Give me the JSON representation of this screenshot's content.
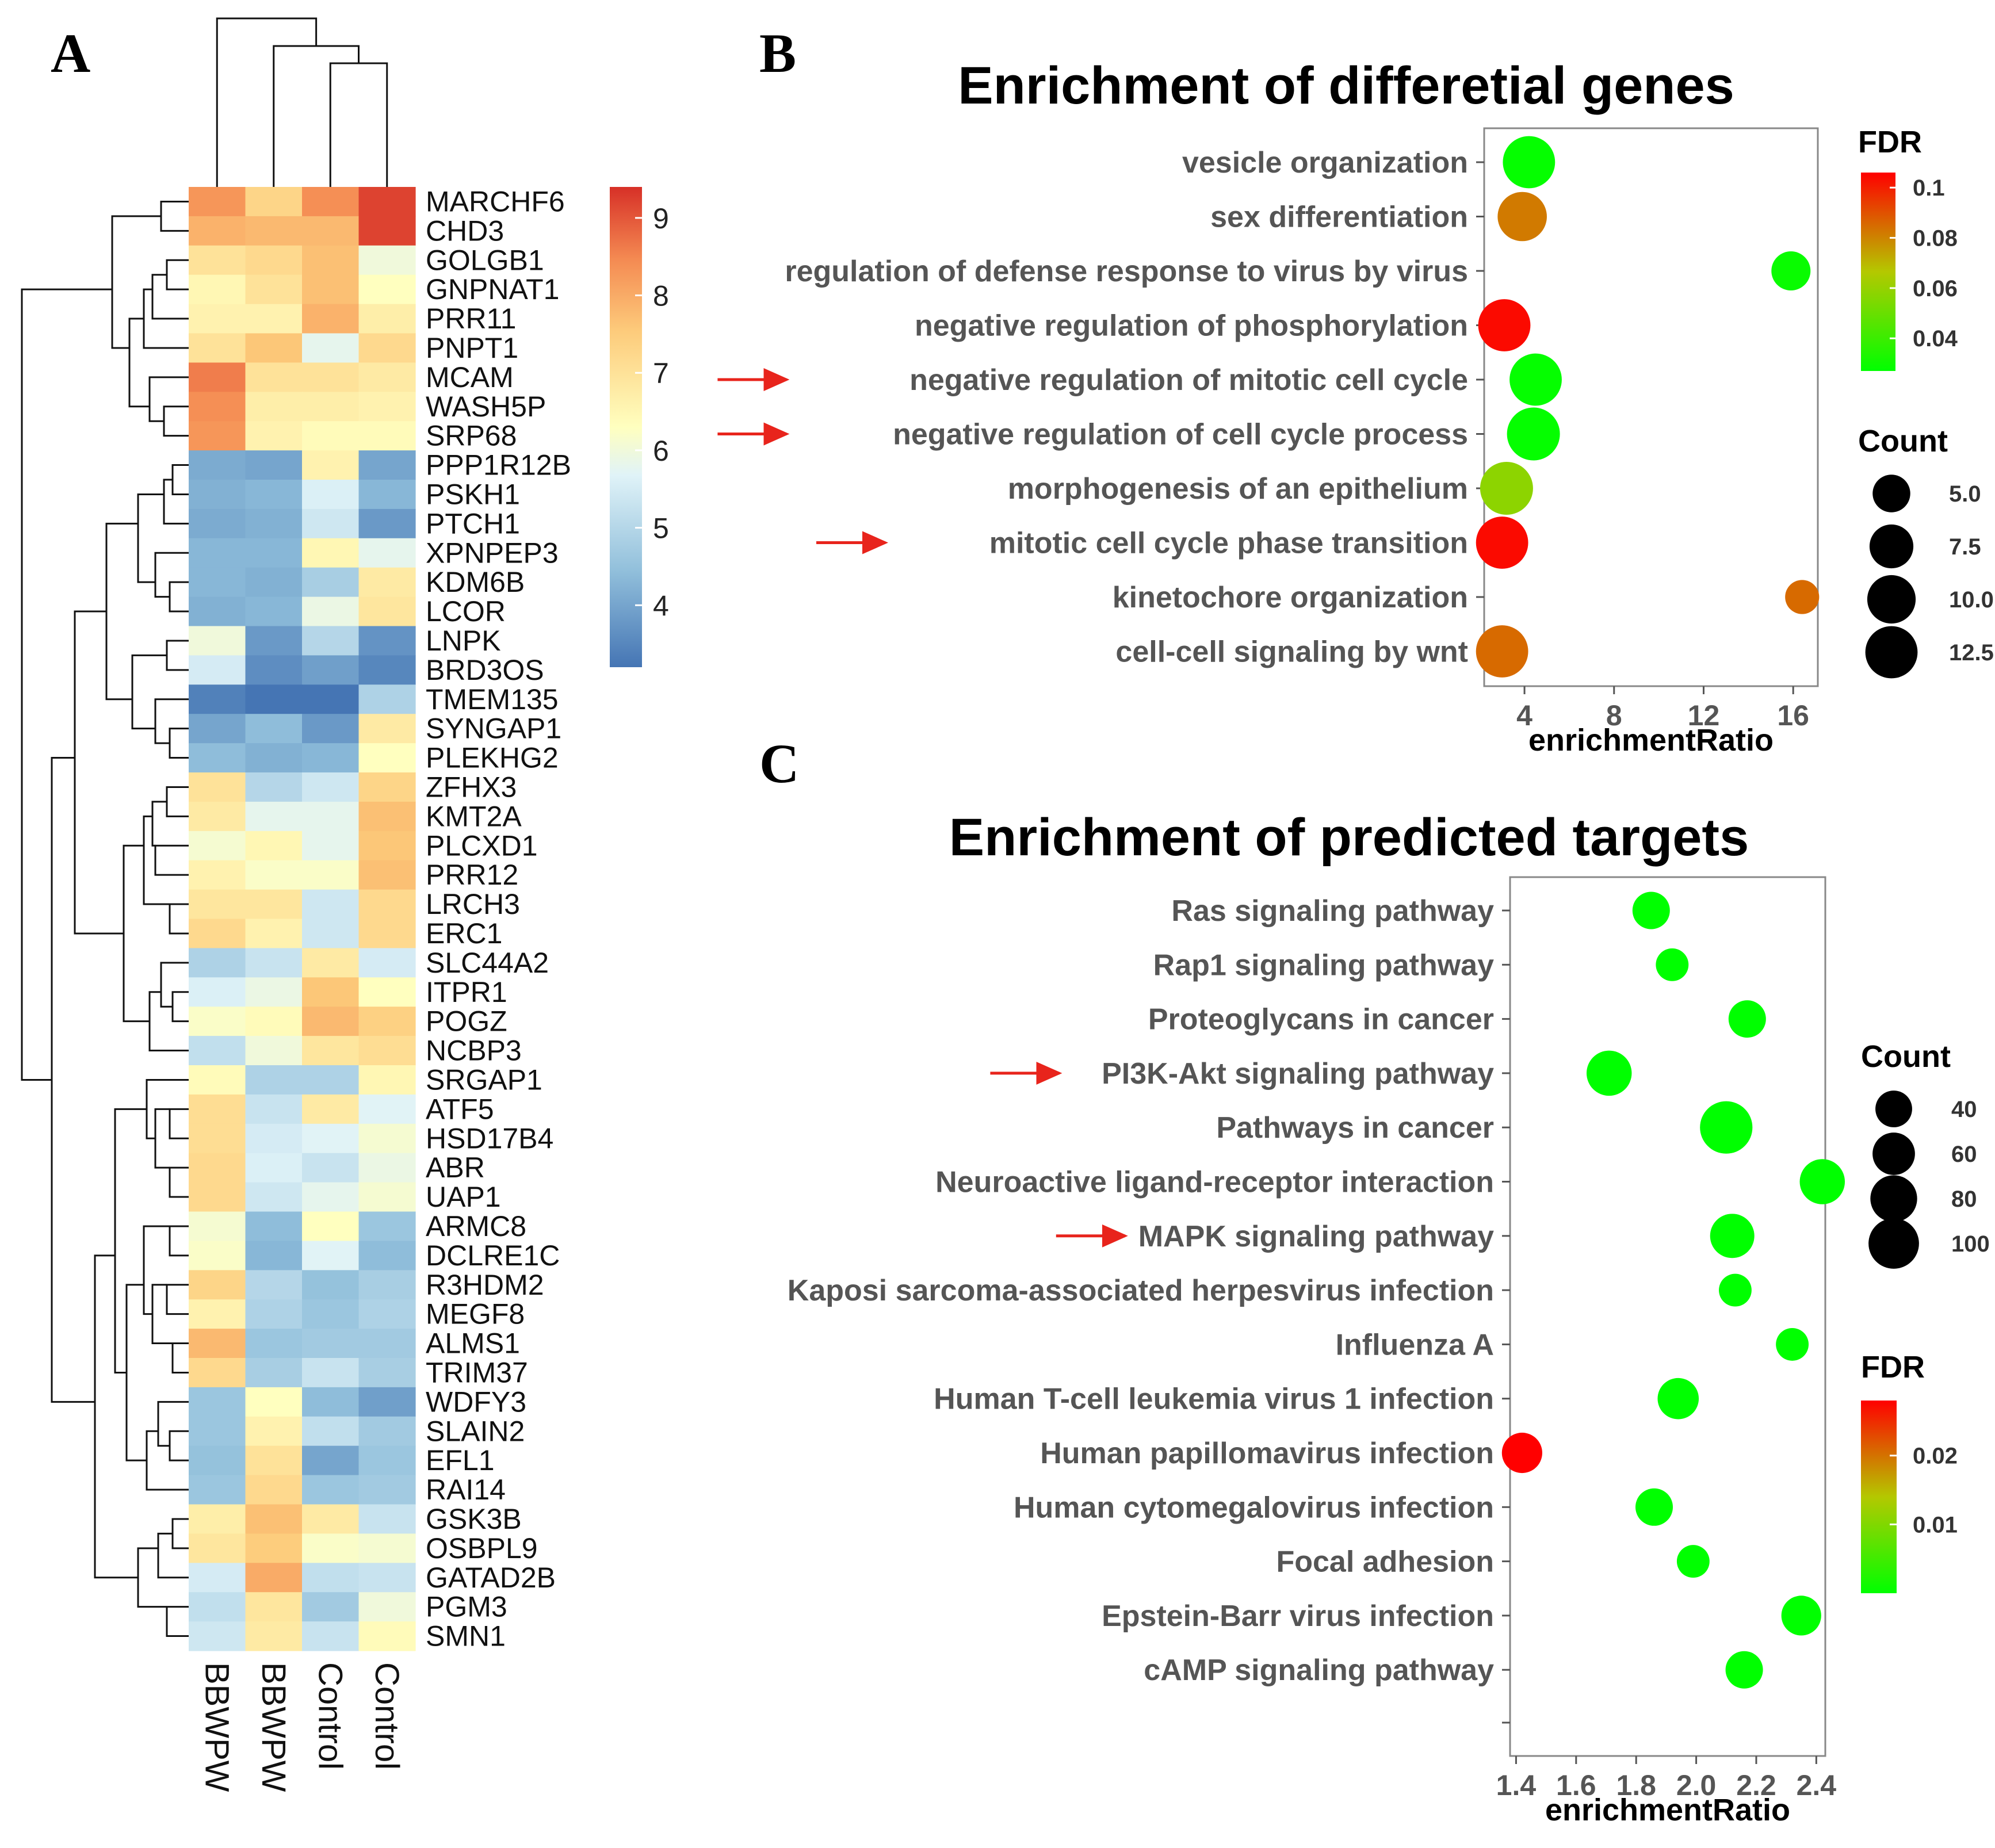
{
  "panels": {
    "A": "A",
    "B": "B",
    "C": "C"
  },
  "chart_data": [
    {
      "id": "heatmap",
      "type": "heatmap",
      "title": "",
      "samples": [
        "BBWPW",
        "BBWPW",
        "Control",
        "Control"
      ],
      "genes": [
        "MARCHF6",
        "CHD3",
        "GOLGB1",
        "GNPNAT1",
        "PRR11",
        "PNPT1",
        "MCAM",
        "WASH5P",
        "SRP68",
        "PPP1R12B",
        "PSKH1",
        "PTCH1",
        "XPNPEP3",
        "KDM6B",
        "LCOR",
        "LNPK",
        "BRD3OS",
        "TMEM135",
        "SYNGAP1",
        "PLEKHG2",
        "ZFHX3",
        "KMT2A",
        "PLCXD1",
        "PRR12",
        "LRCH3",
        "ERC1",
        "SLC44A2",
        "ITPR1",
        "POGZ",
        "NCBP3",
        "SRGAP1",
        "ATF5",
        "HSD17B4",
        "ABR",
        "UAP1",
        "ARMC8",
        "DCLRE1C",
        "R3HDM2",
        "MEGF8",
        "ALMS1",
        "TRIM37",
        "WDFY3",
        "SLAIN2",
        "EFL1",
        "RAI14",
        "GSK3B",
        "OSBPL9",
        "GATAD2B",
        "PGM3",
        "SMN1"
      ],
      "values": [
        [
          8.3,
          7.3,
          8.4,
          9.2
        ],
        [
          7.9,
          7.8,
          7.8,
          9.2
        ],
        [
          7.0,
          7.2,
          7.7,
          6.0
        ],
        [
          6.5,
          7.0,
          7.7,
          6.3
        ],
        [
          6.6,
          6.6,
          7.9,
          6.7
        ],
        [
          7.0,
          7.6,
          5.8,
          7.2
        ],
        [
          8.6,
          7.0,
          7.0,
          6.8
        ],
        [
          8.4,
          6.7,
          6.7,
          6.6
        ],
        [
          8.3,
          6.6,
          6.4,
          6.4
        ],
        [
          4.1,
          4.0,
          6.6,
          4.0
        ],
        [
          4.2,
          4.3,
          5.6,
          4.3
        ],
        [
          4.1,
          4.2,
          5.4,
          3.8
        ],
        [
          4.3,
          4.3,
          6.5,
          5.8
        ],
        [
          4.3,
          4.2,
          4.8,
          6.8
        ],
        [
          4.2,
          4.3,
          5.9,
          6.9
        ],
        [
          6.0,
          3.8,
          5.0,
          3.7
        ],
        [
          5.5,
          3.6,
          3.9,
          3.5
        ],
        [
          3.4,
          3.2,
          3.1,
          4.9
        ],
        [
          4.0,
          4.4,
          3.8,
          6.8
        ],
        [
          4.4,
          4.2,
          4.3,
          6.3
        ],
        [
          7.0,
          5.0,
          5.4,
          7.3
        ],
        [
          6.8,
          5.8,
          5.8,
          7.7
        ],
        [
          6.1,
          6.5,
          5.8,
          7.6
        ],
        [
          6.6,
          6.2,
          6.2,
          7.7
        ],
        [
          6.9,
          6.9,
          5.4,
          7.2
        ],
        [
          7.2,
          6.6,
          5.4,
          7.2
        ],
        [
          4.9,
          5.3,
          6.8,
          5.5
        ],
        [
          5.6,
          5.9,
          7.6,
          6.3
        ],
        [
          6.2,
          6.4,
          7.8,
          7.4
        ],
        [
          5.2,
          6.0,
          6.9,
          7.1
        ],
        [
          6.4,
          4.9,
          4.9,
          6.5
        ],
        [
          7.1,
          5.3,
          6.8,
          5.7
        ],
        [
          7.1,
          5.5,
          5.7,
          6.1
        ],
        [
          7.2,
          5.6,
          5.3,
          5.9
        ],
        [
          7.2,
          5.4,
          5.8,
          6.1
        ],
        [
          6.1,
          4.4,
          6.3,
          4.6
        ],
        [
          6.2,
          4.3,
          5.7,
          4.4
        ],
        [
          7.3,
          5.0,
          4.5,
          4.8
        ],
        [
          6.6,
          4.9,
          4.6,
          4.9
        ],
        [
          7.8,
          4.6,
          4.7,
          4.7
        ],
        [
          7.2,
          4.8,
          5.3,
          4.8
        ],
        [
          4.6,
          6.3,
          4.4,
          3.9
        ],
        [
          4.6,
          6.6,
          5.2,
          4.7
        ],
        [
          4.5,
          7.0,
          4.0,
          4.6
        ],
        [
          4.6,
          7.2,
          4.6,
          4.7
        ],
        [
          6.7,
          7.7,
          6.8,
          5.3
        ],
        [
          6.9,
          7.5,
          6.2,
          6.1
        ],
        [
          5.5,
          8.0,
          5.2,
          5.3
        ],
        [
          5.2,
          6.9,
          4.7,
          6.0
        ],
        [
          5.4,
          6.8,
          5.3,
          6.4
        ]
      ],
      "colorbar_ticks": [
        "9",
        "8",
        "7",
        "6",
        "5",
        "4"
      ],
      "colorbar_range": [
        3.2,
        9.4
      ]
    },
    {
      "id": "dotplot-B",
      "type": "scatter",
      "title": "Enrichment of differetial genes",
      "xlabel": "enrichmentRatio",
      "xlim": [
        2.2,
        17.1
      ],
      "xticks": [
        4,
        8,
        12,
        16
      ],
      "terms": [
        {
          "label": "vesicle organization",
          "x": 4.2,
          "fdr": 0.028,
          "count": 12.5,
          "arrow": false
        },
        {
          "label": "sex differentiation",
          "x": 3.9,
          "fdr": 0.082,
          "count": 10.5,
          "arrow": false
        },
        {
          "label": "regulation of defense response to virus by virus",
          "x": 15.9,
          "fdr": 0.029,
          "count": 5.5,
          "arrow": false
        },
        {
          "label": "negative regulation of phosphorylation",
          "x": 3.1,
          "fdr": 0.104,
          "count": 12.5,
          "arrow": false
        },
        {
          "label": "negative regulation of mitotic cell cycle",
          "x": 4.5,
          "fdr": 0.028,
          "count": 12.5,
          "arrow": true
        },
        {
          "label": "negative regulation of cell cycle process",
          "x": 4.4,
          "fdr": 0.028,
          "count": 13.0,
          "arrow": true
        },
        {
          "label": "morphogenesis of an epithelium",
          "x": 3.2,
          "fdr": 0.058,
          "count": 13.0,
          "arrow": false
        },
        {
          "label": "mitotic cell cycle phase transition",
          "x": 3.0,
          "fdr": 0.104,
          "count": 12.5,
          "arrow": true
        },
        {
          "label": "kinetochore organization",
          "x": 16.4,
          "fdr": 0.085,
          "count": 4.0,
          "arrow": false
        },
        {
          "label": "cell-cell signaling by wnt",
          "x": 3.0,
          "fdr": 0.085,
          "count": 12.5,
          "arrow": false
        }
      ],
      "fdr_legend": {
        "title": "FDR",
        "ticks": [
          0.1,
          0.08,
          0.06,
          0.04
        ],
        "range": [
          0.027,
          0.106
        ]
      },
      "count_legend": {
        "title": "Count",
        "values": [
          5.0,
          7.5,
          10.0,
          12.5
        ],
        "labels": [
          "5.0",
          "7.5",
          "10.0",
          "12.5"
        ]
      }
    },
    {
      "id": "dotplot-C",
      "type": "scatter",
      "title": "Enrichment of predicted targets",
      "xlabel": "enrichmentRatio",
      "xlim": [
        1.38,
        2.43
      ],
      "xticks": [
        1.4,
        1.6,
        1.8,
        2.0,
        2.2,
        2.4
      ],
      "xticklabels": [
        "1.4",
        "1.6",
        "1.8",
        "2.0",
        "2.2",
        "2.4"
      ],
      "terms": [
        {
          "label": "Ras signaling pathway",
          "x": 1.85,
          "fdr": 0.0,
          "count": 42,
          "arrow": false
        },
        {
          "label": "Rap1 signaling pathway",
          "x": 1.92,
          "fdr": 0.0,
          "count": 30,
          "arrow": false
        },
        {
          "label": "Proteoglycans in cancer",
          "x": 2.17,
          "fdr": 0.0,
          "count": 42,
          "arrow": false
        },
        {
          "label": "PI3K-Akt signaling pathway",
          "x": 1.71,
          "fdr": 0.0,
          "count": 72,
          "arrow": true
        },
        {
          "label": "Pathways in cancer",
          "x": 2.1,
          "fdr": 0.0,
          "count": 112,
          "arrow": false
        },
        {
          "label": "Neuroactive ligand-receptor interaction",
          "x": 2.42,
          "fdr": 0.0,
          "count": 72,
          "arrow": false
        },
        {
          "label": "MAPK signaling pathway",
          "x": 2.12,
          "fdr": 0.0,
          "count": 68,
          "arrow": true
        },
        {
          "label": "Kaposi sarcoma-associated herpesvirus infection",
          "x": 2.13,
          "fdr": 0.0,
          "count": 30,
          "arrow": false
        },
        {
          "label": "Influenza A",
          "x": 2.32,
          "fdr": 0.0,
          "count": 30,
          "arrow": false
        },
        {
          "label": "Human T-cell leukemia virus 1 infection",
          "x": 1.94,
          "fdr": 0.0,
          "count": 55,
          "arrow": false
        },
        {
          "label": "Human papillomavirus infection",
          "x": 1.42,
          "fdr": 0.028,
          "count": 52,
          "arrow": false
        },
        {
          "label": "Human cytomegalovirus infection",
          "x": 1.86,
          "fdr": 0.0,
          "count": 42,
          "arrow": false
        },
        {
          "label": "Focal adhesion",
          "x": 1.99,
          "fdr": 0.0,
          "count": 30,
          "arrow": false
        },
        {
          "label": "Epstein-Barr virus infection",
          "x": 2.35,
          "fdr": 0.0,
          "count": 50,
          "arrow": false
        },
        {
          "label": "cAMP signaling pathway",
          "x": 2.16,
          "fdr": 0.0,
          "count": 42,
          "arrow": false
        }
      ],
      "fdr_legend": {
        "title": "FDR",
        "ticks": [
          0.02,
          0.01
        ],
        "range": [
          0.0,
          0.028
        ]
      },
      "count_legend": {
        "title": "Count",
        "values": [
          40,
          60,
          80,
          100
        ],
        "labels": [
          "40",
          "60",
          "80",
          "100"
        ]
      }
    }
  ]
}
